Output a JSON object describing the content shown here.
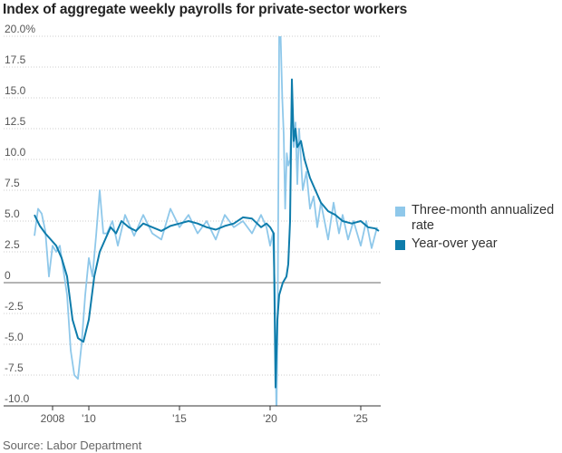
{
  "chart_data": {
    "type": "line",
    "title": "Index of aggregate weekly payrolls for private-sector workers",
    "source": "Source: Labor Department",
    "xlabel": "",
    "ylabel": "",
    "ylim": [
      -10,
      20
    ],
    "xlim": [
      2006.9,
      2026.1
    ],
    "y_ticks": [
      {
        "value": 20,
        "label": "20.0%"
      },
      {
        "value": 17.5,
        "label": "17.5"
      },
      {
        "value": 15,
        "label": "15.0"
      },
      {
        "value": 12.5,
        "label": "12.5"
      },
      {
        "value": 10,
        "label": "10.0"
      },
      {
        "value": 7.5,
        "label": "7.5"
      },
      {
        "value": 5,
        "label": "5.0"
      },
      {
        "value": 2.5,
        "label": "2.5"
      },
      {
        "value": 0,
        "label": "0"
      },
      {
        "value": -2.5,
        "label": "-2.5"
      },
      {
        "value": -5,
        "label": "-5.0"
      },
      {
        "value": -7.5,
        "label": "-7.5"
      },
      {
        "value": -10,
        "label": "-10.0"
      }
    ],
    "x_ticks": [
      {
        "value": 2008,
        "label": "2008"
      },
      {
        "value": 2010,
        "label": "'10"
      },
      {
        "value": 2015,
        "label": "'15"
      },
      {
        "value": 2020,
        "label": "'20"
      },
      {
        "value": 2025,
        "label": "'25"
      }
    ],
    "colors": {
      "three_month": "#8fc8ea",
      "year_over_year": "#0e7cab",
      "zero_line": "#888888",
      "grid": "#cccccc"
    },
    "series": [
      {
        "name": "Three-month annualized rate",
        "color": "#8fc8ea",
        "x": [
          2007.0,
          2007.2,
          2007.4,
          2007.6,
          2007.8,
          2008.0,
          2008.2,
          2008.4,
          2008.6,
          2008.8,
          2009.0,
          2009.2,
          2009.4,
          2009.6,
          2009.8,
          2010.0,
          2010.2,
          2010.4,
          2010.6,
          2010.8,
          2011.0,
          2011.3,
          2011.6,
          2012.0,
          2012.5,
          2013.0,
          2013.5,
          2014.0,
          2014.5,
          2015.0,
          2015.5,
          2016.0,
          2016.5,
          2017.0,
          2017.5,
          2018.0,
          2018.5,
          2019.0,
          2019.5,
          2019.8,
          2020.0,
          2020.15,
          2020.25,
          2020.35,
          2020.42,
          2020.5,
          2020.58,
          2020.67,
          2020.75,
          2020.83,
          2020.92,
          2021.0,
          2021.1,
          2021.2,
          2021.3,
          2021.4,
          2021.5,
          2021.6,
          2021.7,
          2021.8,
          2022.0,
          2022.2,
          2022.4,
          2022.6,
          2022.8,
          2023.0,
          2023.2,
          2023.5,
          2023.8,
          2024.0,
          2024.3,
          2024.6,
          2025.0,
          2025.3,
          2025.6,
          2025.9
        ],
        "values": [
          3.8,
          6.0,
          5.6,
          4.2,
          0.5,
          3.0,
          2.5,
          3.0,
          1.0,
          -1.0,
          -5.5,
          -7.5,
          -7.8,
          -5.0,
          -1.0,
          2.0,
          0.5,
          3.8,
          7.5,
          4.0,
          4.0,
          5.0,
          3.0,
          5.5,
          3.8,
          5.5,
          4.0,
          3.5,
          6.0,
          4.5,
          5.5,
          4.0,
          5.0,
          3.5,
          5.5,
          4.5,
          5.0,
          4.0,
          5.5,
          4.5,
          3.0,
          4.0,
          0.0,
          -11.0,
          -2.0,
          20.0,
          20.0,
          15.0,
          12.0,
          6.0,
          10.5,
          9.5,
          10.0,
          14.5,
          11.0,
          13.0,
          8.0,
          12.5,
          10.0,
          7.5,
          9.0,
          6.0,
          7.0,
          4.5,
          6.5,
          5.0,
          3.5,
          6.5,
          4.0,
          5.5,
          3.5,
          5.0,
          3.0,
          5.0,
          2.8,
          4.5
        ]
      },
      {
        "name": "Year-over year",
        "color": "#0e7cab",
        "x": [
          2007.0,
          2007.3,
          2007.6,
          2007.9,
          2008.2,
          2008.5,
          2008.8,
          2009.1,
          2009.4,
          2009.7,
          2010.0,
          2010.3,
          2010.6,
          2010.9,
          2011.2,
          2011.5,
          2011.8,
          2012.2,
          2012.6,
          2013.0,
          2013.5,
          2014.0,
          2014.5,
          2015.0,
          2015.5,
          2016.0,
          2016.5,
          2017.0,
          2017.5,
          2018.0,
          2018.5,
          2019.0,
          2019.5,
          2019.8,
          2020.0,
          2020.2,
          2020.3,
          2020.4,
          2020.5,
          2020.7,
          2020.9,
          2021.0,
          2021.1,
          2021.2,
          2021.3,
          2021.4,
          2021.5,
          2021.7,
          2021.9,
          2022.2,
          2022.5,
          2022.8,
          2023.2,
          2023.6,
          2024.0,
          2024.5,
          2025.0,
          2025.4,
          2025.8,
          2026.0
        ],
        "values": [
          5.5,
          4.6,
          4.0,
          3.5,
          3.0,
          2.0,
          0.5,
          -3.0,
          -4.5,
          -4.8,
          -3.0,
          0.5,
          2.5,
          3.5,
          4.5,
          4.0,
          5.0,
          4.5,
          4.2,
          4.8,
          4.5,
          4.2,
          4.6,
          4.8,
          5.0,
          4.8,
          4.5,
          4.3,
          4.6,
          4.8,
          5.3,
          5.2,
          4.5,
          4.8,
          4.5,
          4.0,
          -8.5,
          -3.0,
          -1.0,
          0.0,
          0.5,
          1.5,
          5.0,
          16.5,
          11.5,
          12.5,
          11.0,
          11.5,
          10.0,
          8.5,
          7.5,
          6.5,
          5.8,
          5.5,
          5.0,
          4.8,
          5.0,
          4.5,
          4.4,
          4.2
        ]
      }
    ]
  }
}
